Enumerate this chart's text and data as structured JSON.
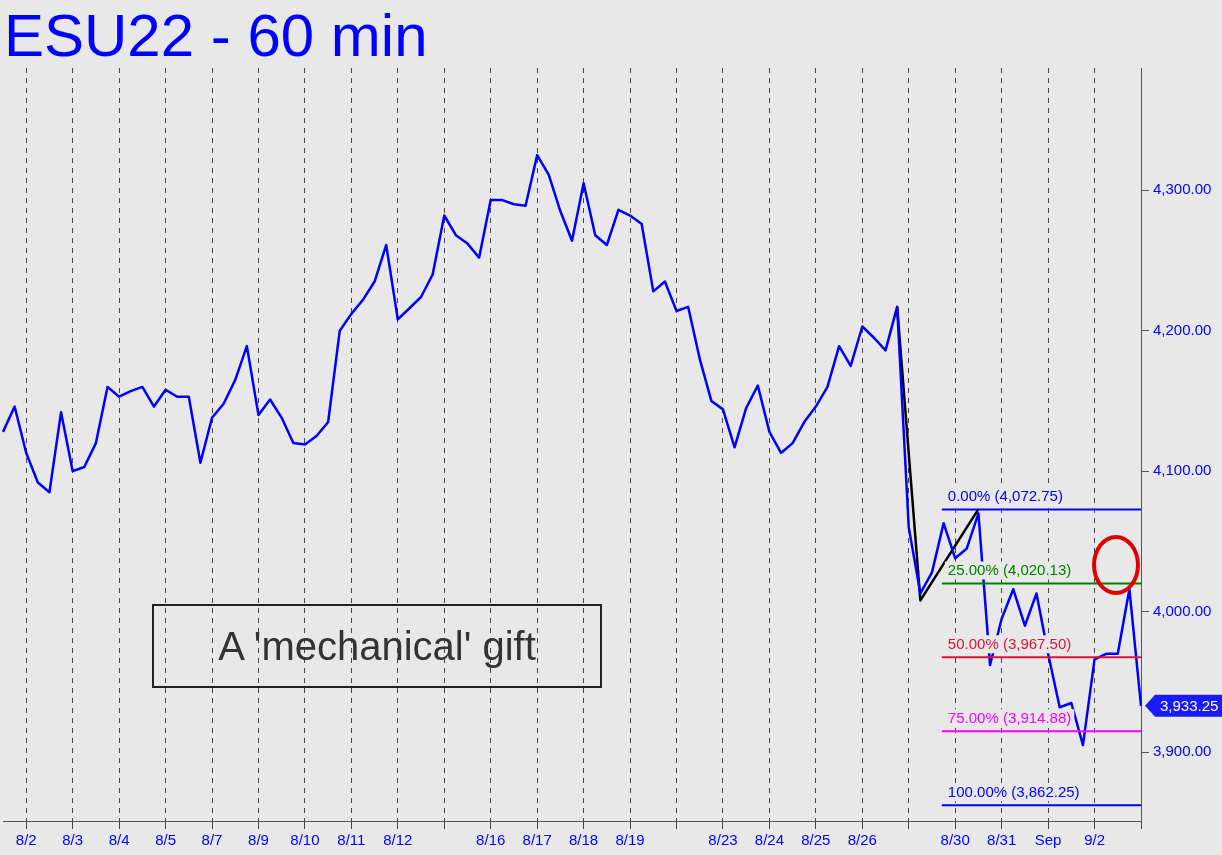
{
  "chart_data": {
    "type": "line",
    "title": "ESU22 - 60 min",
    "annotations": [
      "A 'mechanical' gift",
      "3,933.25"
    ],
    "categories": [
      null,
      null,
      "8/2",
      null,
      null,
      null,
      "8/3",
      null,
      null,
      null,
      "8/4",
      null,
      null,
      null,
      "8/5",
      null,
      null,
      null,
      "8/7",
      null,
      null,
      null,
      "8/9",
      null,
      null,
      null,
      "8/10",
      null,
      null,
      null,
      "8/11",
      null,
      null,
      null,
      "8/12",
      null,
      null,
      null,
      null,
      null,
      null,
      null,
      "8/16",
      null,
      null,
      null,
      "8/17",
      null,
      null,
      null,
      "8/18",
      null,
      null,
      null,
      "8/19",
      null,
      null,
      null,
      null,
      null,
      null,
      null,
      "8/23",
      null,
      null,
      null,
      "8/24",
      null,
      null,
      null,
      "8/25",
      null,
      null,
      null,
      "8/26",
      null,
      null,
      null,
      null,
      null,
      null,
      null,
      "8/30",
      null,
      null,
      null,
      "8/31",
      null,
      null,
      null,
      "Sep",
      null,
      null,
      null,
      "9/2",
      null,
      null,
      null,
      null
    ],
    "ylim": [
      3851,
      4387
    ],
    "yticks": [
      {
        "value": 3900,
        "label": "3,900.00"
      },
      {
        "value": 4000,
        "label": "4,000.00"
      },
      {
        "value": 4100,
        "label": "4,100.00"
      },
      {
        "value": 4200,
        "label": "4,200.00"
      },
      {
        "value": 4300,
        "label": "4,300.00"
      }
    ],
    "grid": "x",
    "legend": false,
    "marker": "none",
    "ref_lines": [
      {
        "axis": "y",
        "value": 4072.75,
        "label": "0.00% (4,072.75)",
        "color": "#0000ff"
      },
      {
        "axis": "y",
        "value": 4020.13,
        "label": "25.00% (4,020.13)",
        "color": "#008000"
      },
      {
        "axis": "y",
        "value": 3967.5,
        "label": "50.00% (3,967.50)",
        "color": "#dc143c"
      },
      {
        "axis": "y",
        "value": 3914.88,
        "label": "75.00% (3,914.88)",
        "color": "#ff00ff"
      },
      {
        "axis": "y",
        "value": 3862.25,
        "label": "100.00% (3,862.25)",
        "color": "#0000ff"
      }
    ],
    "series": [
      {
        "color": "#0000ff",
        "values": [
          4128,
          4146,
          4113,
          4092,
          4085,
          4142,
          4100,
          4103,
          4120,
          4160,
          4153,
          4157,
          4160,
          4146,
          4158,
          4153,
          4153,
          4106,
          4138,
          4148,
          4165,
          4189,
          4140,
          4151,
          4138,
          4120,
          4119,
          4125,
          4135,
          4200,
          4212,
          4222,
          4235,
          4261,
          4208,
          4216,
          4224,
          4240,
          4282,
          4268,
          4262,
          4252,
          4293,
          4293,
          4290,
          4289,
          4325,
          4311,
          4285,
          4264,
          4305,
          4268,
          4261,
          4286,
          4282,
          4276,
          4228,
          4235,
          4214,
          4217,
          4180,
          4150,
          4144,
          4117,
          4145,
          4161,
          4128,
          4113,
          4120,
          4135,
          4146,
          4160,
          4189,
          4175,
          4203,
          4195,
          4186,
          4217,
          4060,
          4013,
          4028,
          4063,
          4038,
          4045,
          4070,
          3962,
          3995,
          4016,
          3990,
          4013,
          3970,
          3932,
          3935,
          3905,
          3966,
          3970,
          3970,
          4016,
          3933
        ]
      },
      {
        "color": "#000000",
        "values": [
          null,
          null,
          null,
          null,
          null,
          null,
          null,
          null,
          null,
          null,
          null,
          null,
          null,
          null,
          null,
          null,
          null,
          null,
          null,
          null,
          null,
          null,
          null,
          null,
          null,
          null,
          null,
          null,
          null,
          null,
          null,
          null,
          null,
          null,
          null,
          null,
          null,
          null,
          null,
          null,
          null,
          null,
          null,
          null,
          null,
          null,
          null,
          null,
          null,
          null,
          null,
          null,
          null,
          null,
          null,
          null,
          null,
          null,
          null,
          null,
          null,
          null,
          null,
          null,
          null,
          null,
          null,
          null,
          null,
          null,
          null,
          null,
          null,
          null,
          null,
          null,
          null,
          4217,
          null,
          4008,
          null,
          null,
          null,
          null,
          4073,
          null,
          null,
          null,
          null,
          null,
          null,
          null,
          null,
          null,
          null,
          null,
          null,
          null,
          null
        ]
      }
    ]
  }
}
